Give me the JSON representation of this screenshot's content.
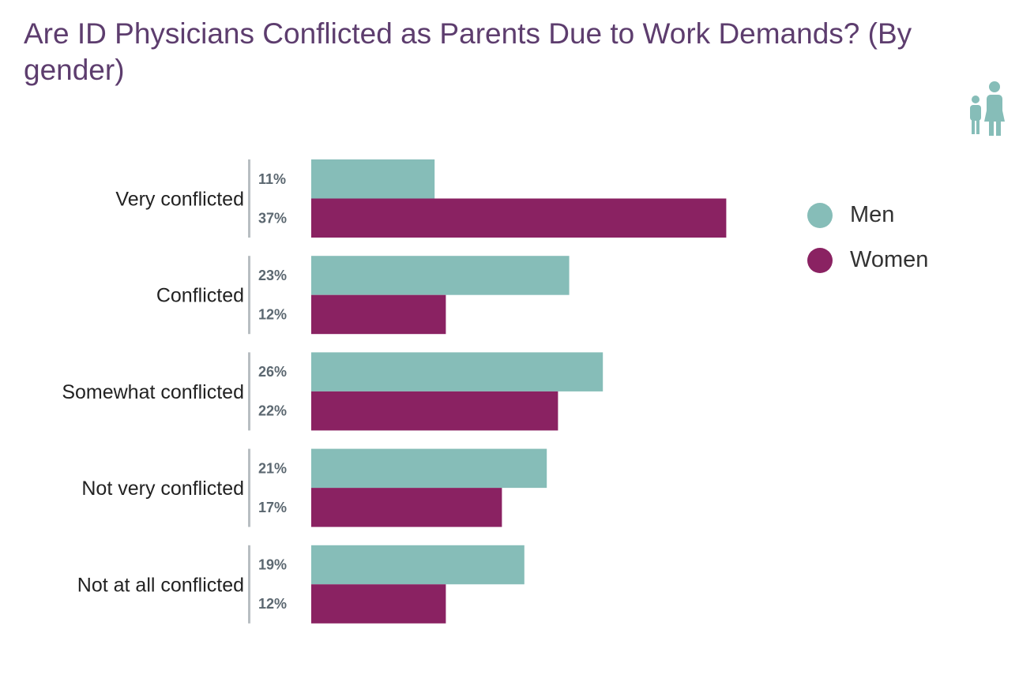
{
  "title": "Are ID Physicians Conflicted as Parents Due to Work Demands? (By gender)",
  "icon": "family-icon",
  "colors": {
    "title": "#5d3d6e",
    "men": "#86bdb8",
    "women": "#8a2262",
    "icon": "#86bdb8"
  },
  "legend": [
    {
      "label": "Men",
      "color": "#86bdb8"
    },
    {
      "label": "Women",
      "color": "#8a2262"
    }
  ],
  "chart_data": {
    "type": "bar",
    "orientation": "horizontal",
    "categories": [
      "Very conflicted",
      "Conflicted",
      "Somewhat conflicted",
      "Not very conflicted",
      "Not at all conflicted"
    ],
    "series": [
      {
        "name": "Men",
        "values": [
          11,
          23,
          26,
          21,
          19
        ],
        "labels": [
          "11%",
          "23%",
          "26%",
          "21%",
          "19%"
        ]
      },
      {
        "name": "Women",
        "values": [
          37,
          12,
          22,
          17,
          12
        ],
        "labels": [
          "37%",
          "12%",
          "22%",
          "17%",
          "12%"
        ]
      }
    ],
    "value_unit": "%",
    "xlim": [
      0,
      37
    ],
    "grid": false,
    "legend_position": "right"
  }
}
